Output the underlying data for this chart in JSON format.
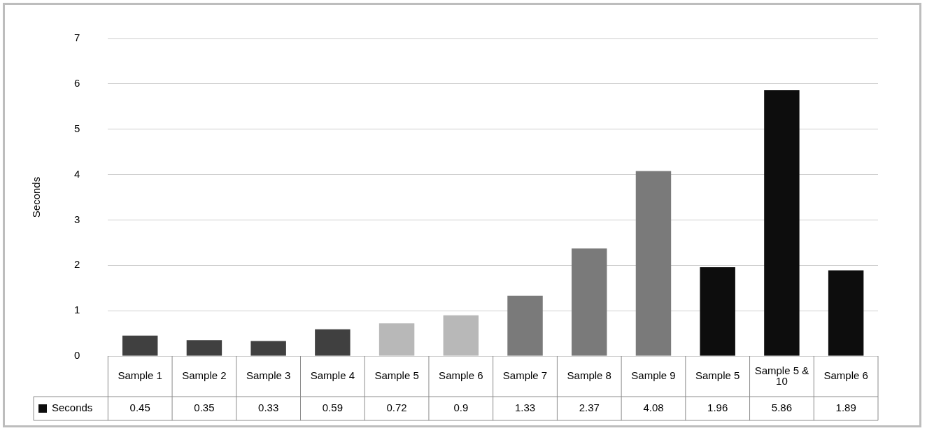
{
  "chart_data": {
    "type": "bar",
    "ylabel": "Seconds",
    "categories": [
      "Sample 1",
      "Sample 2",
      "Sample 3",
      "Sample 4",
      "Sample 5",
      "Sample 6",
      "Sample 7",
      "Sample 8",
      "Sample 9",
      "Sample 5",
      "Sample 5 & 10",
      "Sample 6"
    ],
    "series": [
      {
        "name": "Seconds",
        "color": "#0d0d0d",
        "colors": [
          "#404040",
          "#404040",
          "#404040",
          "#404040",
          "#b8b8b8",
          "#b8b8b8",
          "#7a7a7a",
          "#7a7a7a",
          "#7a7a7a",
          "#0d0d0d",
          "#0d0d0d",
          "#0d0d0d"
        ],
        "values": [
          0.45,
          0.35,
          0.33,
          0.59,
          0.72,
          0.9,
          1.33,
          2.37,
          4.08,
          1.96,
          5.86,
          1.89
        ]
      }
    ],
    "ylim": [
      0,
      7
    ],
    "yticks": [
      0,
      1,
      2,
      3,
      4,
      5,
      6,
      7
    ],
    "grid": "y",
    "legend": "bottom left",
    "data_labels": true
  }
}
